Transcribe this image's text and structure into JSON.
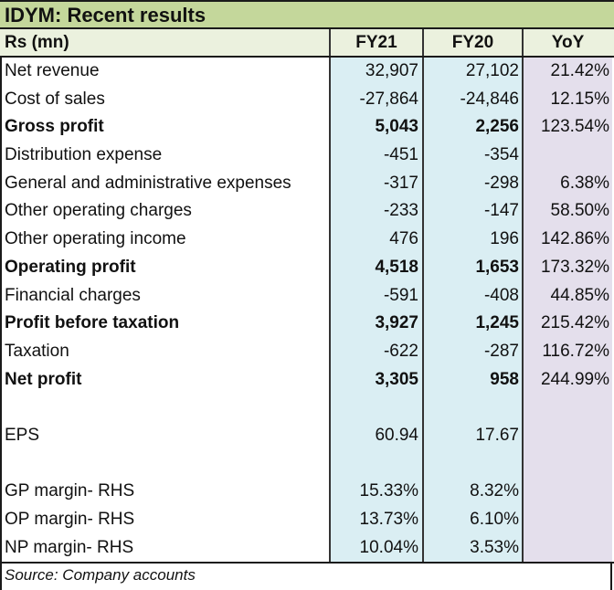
{
  "title": "IDYM: Recent results",
  "header": {
    "label": "Rs (mn)",
    "fy21": "FY21",
    "fy20": "FY20",
    "yoy": "YoY"
  },
  "colors": {
    "title_bg": "#c4d79b",
    "header_bg": "#ebf1de",
    "fy_col_bg": "#daeef3",
    "yoy_col_bg": "#e4dfec"
  },
  "rows": [
    {
      "label": "Net revenue",
      "fy21": "32,907",
      "fy20": "27,102",
      "yoy": "21.42%",
      "bold": false
    },
    {
      "label": "Cost of sales",
      "fy21": "-27,864",
      "fy20": "-24,846",
      "yoy": "12.15%",
      "bold": false
    },
    {
      "label": "Gross profit",
      "fy21": "5,043",
      "fy20": "2,256",
      "yoy": "123.54%",
      "bold": true
    },
    {
      "label": "Distribution expense",
      "fy21": "-451",
      "fy20": "-354",
      "yoy": "",
      "bold": false
    },
    {
      "label": "General and administrative expenses",
      "fy21": "-317",
      "fy20": "-298",
      "yoy": "6.38%",
      "bold": false
    },
    {
      "label": "Other operating charges",
      "fy21": "-233",
      "fy20": "-147",
      "yoy": "58.50%",
      "bold": false
    },
    {
      "label": "Other operating income",
      "fy21": "476",
      "fy20": "196",
      "yoy": "142.86%",
      "bold": false
    },
    {
      "label": "Operating profit",
      "fy21": "4,518",
      "fy20": "1,653",
      "yoy": "173.32%",
      "bold": true
    },
    {
      "label": "Financial charges",
      "fy21": "-591",
      "fy20": "-408",
      "yoy": "44.85%",
      "bold": false
    },
    {
      "label": "Profit before taxation",
      "fy21": "3,927",
      "fy20": "1,245",
      "yoy": "215.42%",
      "bold": true
    },
    {
      "label": "Taxation",
      "fy21": "-622",
      "fy20": "-287",
      "yoy": "116.72%",
      "bold": false
    },
    {
      "label": "Net profit",
      "fy21": "3,305",
      "fy20": "958",
      "yoy": "244.99%",
      "bold": true
    },
    {
      "label": "",
      "fy21": "",
      "fy20": "",
      "yoy": "",
      "bold": false
    },
    {
      "label": "EPS",
      "fy21": "60.94",
      "fy20": "17.67",
      "yoy": "",
      "bold": false
    },
    {
      "label": "",
      "fy21": "",
      "fy20": "",
      "yoy": "",
      "bold": false
    },
    {
      "label": "GP margin- RHS",
      "fy21": "15.33%",
      "fy20": "8.32%",
      "yoy": "",
      "bold": false
    },
    {
      "label": "OP margin- RHS",
      "fy21": "13.73%",
      "fy20": "6.10%",
      "yoy": "",
      "bold": false
    },
    {
      "label": "NP margin- RHS",
      "fy21": "10.04%",
      "fy20": "3.53%",
      "yoy": "",
      "bold": false
    }
  ],
  "source": "Source: Company accounts"
}
